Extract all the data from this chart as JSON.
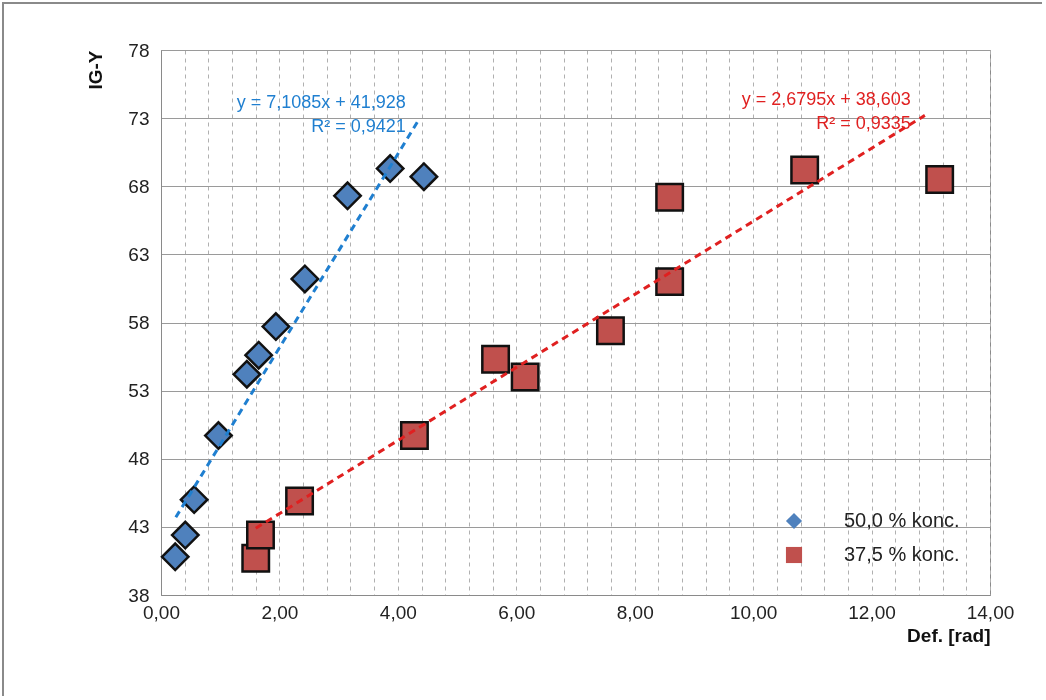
{
  "chart_data": {
    "type": "scatter",
    "xlabel": "Def. [rad]",
    "ylabel": "IG-Y",
    "xlim": [
      0,
      14
    ],
    "ylim": [
      38,
      78
    ],
    "xticks": [
      {
        "value": 0,
        "label": "0,00"
      },
      {
        "value": 0.4,
        "label": null
      },
      {
        "value": 0.8,
        "label": null
      },
      {
        "value": 1.2,
        "label": null
      },
      {
        "value": 1.6,
        "label": null
      },
      {
        "value": 2,
        "label": "2,00"
      },
      {
        "value": 2.4,
        "label": null
      },
      {
        "value": 2.8,
        "label": null
      },
      {
        "value": 3.2,
        "label": null
      },
      {
        "value": 3.6,
        "label": null
      },
      {
        "value": 4,
        "label": "4,00"
      },
      {
        "value": 4.4,
        "label": null
      },
      {
        "value": 4.8,
        "label": null
      },
      {
        "value": 5.2,
        "label": null
      },
      {
        "value": 5.6,
        "label": null
      },
      {
        "value": 6,
        "label": "6,00"
      },
      {
        "value": 6.4,
        "label": null
      },
      {
        "value": 6.8,
        "label": null
      },
      {
        "value": 7.2,
        "label": null
      },
      {
        "value": 7.6,
        "label": null
      },
      {
        "value": 8,
        "label": "8,00"
      },
      {
        "value": 8.4,
        "label": null
      },
      {
        "value": 8.8,
        "label": null
      },
      {
        "value": 9.2,
        "label": null
      },
      {
        "value": 9.6,
        "label": null
      },
      {
        "value": 10,
        "label": "10,00"
      },
      {
        "value": 10.4,
        "label": null
      },
      {
        "value": 10.8,
        "label": null
      },
      {
        "value": 11.2,
        "label": null
      },
      {
        "value": 11.6,
        "label": null
      },
      {
        "value": 12,
        "label": "12,00"
      },
      {
        "value": 12.4,
        "label": null
      },
      {
        "value": 12.8,
        "label": null
      },
      {
        "value": 13.2,
        "label": null
      },
      {
        "value": 13.6,
        "label": null
      },
      {
        "value": 14,
        "label": "14,00"
      }
    ],
    "yticks": [
      38,
      43,
      48,
      53,
      58,
      63,
      68,
      73,
      78
    ],
    "grid": true,
    "legend": "bottom right",
    "series": [
      {
        "name": "50,0 % konc.",
        "type": "scatter",
        "marker": "diamond",
        "color": "#4f81bd",
        "x": [
          0.24,
          0.41,
          0.56,
          0.97,
          1.45,
          1.65,
          1.94,
          2.43,
          3.15,
          3.87,
          4.44
        ],
        "values": [
          40.8,
          42.4,
          45.0,
          49.7,
          54.2,
          55.6,
          57.7,
          61.2,
          67.3,
          69.3,
          68.7
        ]
      },
      {
        "name": "37,5 % konc.",
        "type": "scatter",
        "marker": "square",
        "color": "#c0504d",
        "x": [
          1.6,
          1.68,
          2.34,
          4.28,
          5.65,
          6.15,
          7.59,
          8.59,
          8.59,
          10.87,
          13.15
        ],
        "values": [
          40.7,
          42.4,
          44.9,
          49.7,
          55.3,
          54.0,
          57.4,
          61.0,
          67.2,
          69.2,
          68.5
        ]
      },
      {
        "type": "line",
        "line_style": "dashed",
        "marker": "none",
        "color": "#1f7fd0",
        "x": [
          0.25,
          4.37
        ],
        "values": [
          43.7,
          73.0
        ]
      },
      {
        "type": "line",
        "line_style": "dashed",
        "marker": "none",
        "color": "#e02020",
        "x": [
          1.6,
          12.9
        ],
        "values": [
          42.9,
          73.2
        ]
      }
    ],
    "annotations": [
      "y = 7,1085x + 41,928\nR² = 0,9421",
      "y = 2,6795x + 38,603\nR² = 0,9335"
    ]
  }
}
